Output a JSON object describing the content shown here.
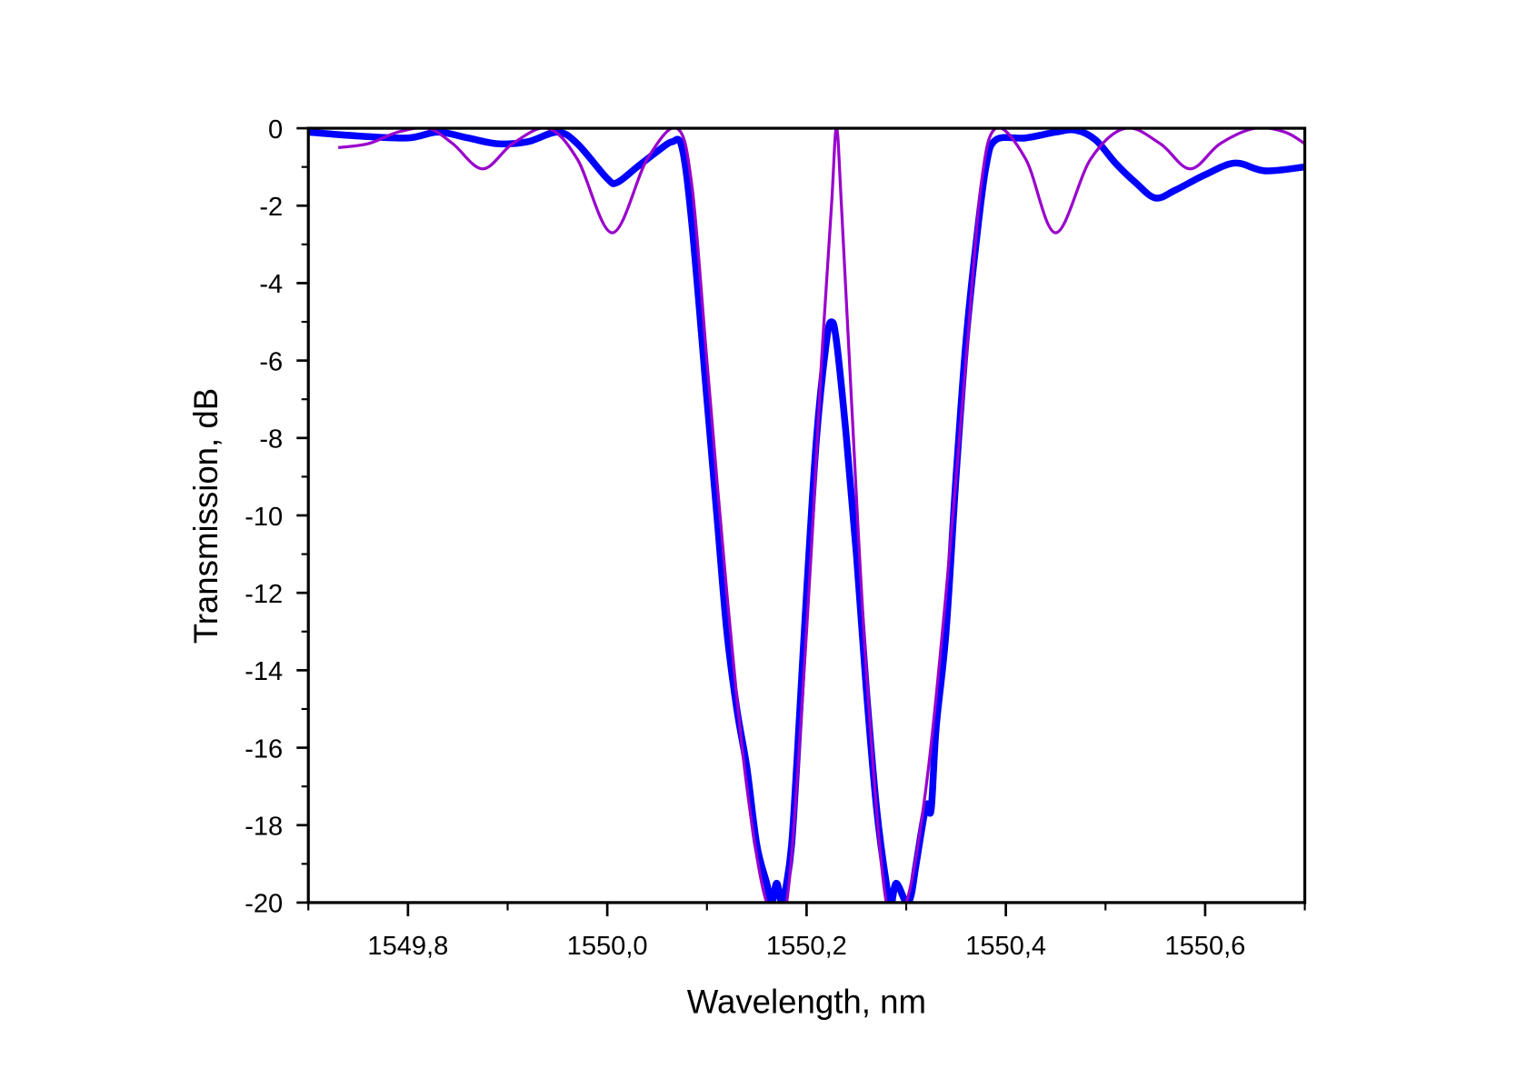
{
  "chart_data": {
    "type": "line",
    "title": "",
    "xlabel": "Wavelength, nm",
    "ylabel": "Transmission, dB",
    "xlim": [
      1549.7,
      1550.7
    ],
    "ylim": [
      -20,
      0
    ],
    "xticks": [
      1549.8,
      1550.0,
      1550.2,
      1550.4,
      1550.6
    ],
    "xtick_labels": [
      "1549,8",
      "1550,0",
      "1550,2",
      "1550,4",
      "1550,6"
    ],
    "yticks": [
      0,
      -2,
      -4,
      -6,
      -8,
      -10,
      -12,
      -14,
      -16,
      -18,
      -20
    ],
    "ytick_labels": [
      "0",
      "-2",
      "-4",
      "-6",
      "-8",
      "-10",
      "-12",
      "-14",
      "-16",
      "-18",
      "-20"
    ],
    "grid": false,
    "legend": "none",
    "series": [
      {
        "color": "#0000ff",
        "x": [
          1549.7,
          1549.75,
          1549.8,
          1549.83,
          1549.86,
          1549.89,
          1549.92,
          1549.95,
          1549.97,
          1550.0,
          1550.01,
          1550.03,
          1550.05,
          1550.065,
          1550.075,
          1550.085,
          1550.1,
          1550.11,
          1550.12,
          1550.13,
          1550.14,
          1550.15,
          1550.16,
          1550.165,
          1550.17,
          1550.175,
          1550.18,
          1550.185,
          1550.19,
          1550.2,
          1550.21,
          1550.22,
          1550.225,
          1550.23,
          1550.24,
          1550.25,
          1550.26,
          1550.27,
          1550.28,
          1550.285,
          1550.29,
          1550.3,
          1550.305,
          1550.31,
          1550.32,
          1550.325,
          1550.33,
          1550.34,
          1550.35,
          1550.36,
          1550.37,
          1550.38,
          1550.39,
          1550.42,
          1550.45,
          1550.47,
          1550.49,
          1550.51,
          1550.53,
          1550.55,
          1550.57,
          1550.6,
          1550.63,
          1550.66,
          1550.7
        ],
        "y": [
          -0.1,
          -0.2,
          -0.25,
          -0.1,
          -0.25,
          -0.4,
          -0.35,
          -0.1,
          -0.4,
          -1.3,
          -1.4,
          -1.0,
          -0.6,
          -0.35,
          -0.5,
          -2.5,
          -7,
          -10,
          -13,
          -15,
          -16.5,
          -18.5,
          -19.5,
          -20,
          -19.5,
          -20,
          -19.5,
          -18.5,
          -16.5,
          -12,
          -8,
          -5.5,
          -5,
          -5.5,
          -8,
          -11,
          -14.5,
          -17.5,
          -19.5,
          -20,
          -19.5,
          -20,
          -19.8,
          -19,
          -17.5,
          -17.6,
          -15.5,
          -13,
          -9,
          -5.5,
          -3,
          -1,
          -0.3,
          -0.25,
          -0.1,
          -0.05,
          -0.3,
          -0.9,
          -1.4,
          -1.8,
          -1.6,
          -1.2,
          -0.9,
          -1.1,
          -1.0
        ]
      },
      {
        "color": "#9900cc",
        "x": [
          1549.73,
          1549.76,
          1549.79,
          1549.82,
          1549.845,
          1549.875,
          1549.905,
          1549.94,
          1549.97,
          1550.005,
          1550.04,
          1550.07,
          1550.085,
          1550.1,
          1550.12,
          1550.14,
          1550.16,
          1550.18,
          1550.2,
          1550.215,
          1550.225,
          1550.23,
          1550.235,
          1550.245,
          1550.26,
          1550.28,
          1550.3,
          1550.32,
          1550.34,
          1550.36,
          1550.375,
          1550.39,
          1550.42,
          1550.45,
          1550.485,
          1550.52,
          1550.555,
          1550.585,
          1550.615,
          1550.65,
          1550.68,
          1550.7
        ],
        "y": [
          -0.5,
          -0.4,
          -0.1,
          0,
          -0.4,
          -1.05,
          -0.4,
          0,
          -0.8,
          -2.7,
          -0.8,
          0,
          -1.5,
          -6,
          -12,
          -17,
          -20,
          -20,
          -13,
          -6,
          -2,
          0,
          -2,
          -7,
          -14,
          -20,
          -20,
          -17,
          -12,
          -6,
          -1.5,
          0,
          -0.8,
          -2.7,
          -0.8,
          0,
          -0.4,
          -1.05,
          -0.4,
          0,
          -0.1,
          -0.4
        ]
      }
    ]
  }
}
